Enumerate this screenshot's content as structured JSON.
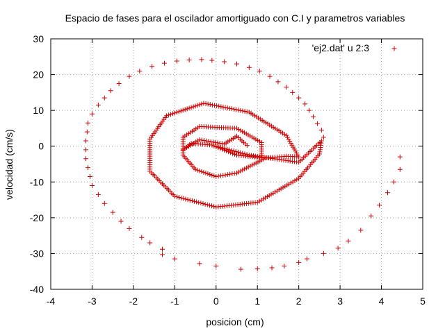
{
  "chart_data": {
    "type": "scatter",
    "title": "Espacio de fases para el oscilador amortiguado con C.I y parametros variables",
    "xlabel": "posicion (cm)",
    "ylabel": "velocidad (cm/s)",
    "xlim": [
      -4,
      5
    ],
    "ylim": [
      -40,
      30
    ],
    "xticks": [
      "-4",
      "-3",
      "-2",
      "-1",
      "0",
      "1",
      "2",
      "3",
      "4",
      "5"
    ],
    "yticks": [
      "-40",
      "-30",
      "-20",
      "-10",
      "0",
      "10",
      "20",
      "30"
    ],
    "grid": true,
    "legend_position": "top-right",
    "marker": "plus",
    "color": "#cc0000",
    "series": [
      {
        "name": "'ej2.dat' u 2:3",
        "anchors": [
          [
            0.0,
            0.0
          ],
          [
            0.8,
            -2.5
          ],
          [
            2.0,
            -4.5
          ],
          [
            2.55,
            1.5
          ],
          [
            2.5,
            -2.2
          ],
          [
            2.0,
            -9.0
          ],
          [
            1.0,
            -15.7
          ],
          [
            0.0,
            -17.0
          ],
          [
            -1.0,
            -14.0
          ],
          [
            -1.6,
            -7.0
          ],
          [
            -1.6,
            2.0
          ],
          [
            -1.2,
            8.5
          ],
          [
            -0.3,
            12.0
          ],
          [
            0.8,
            9.5
          ],
          [
            1.7,
            3.0
          ],
          [
            2.0,
            -3.0
          ],
          [
            1.7,
            -2.8
          ],
          [
            1.2,
            -3.3
          ],
          [
            0.5,
            -7.5
          ],
          [
            0.0,
            -8.5
          ],
          [
            -0.5,
            -6.5
          ],
          [
            -0.8,
            -2.5
          ],
          [
            -0.8,
            2.5
          ],
          [
            -0.4,
            5.5
          ],
          [
            0.5,
            5.0
          ],
          [
            1.1,
            1.0
          ],
          [
            1.1,
            -3.2
          ],
          [
            0.5,
            -2.5
          ],
          [
            -0.1,
            0.3
          ],
          [
            -0.6,
            0.8
          ],
          [
            -0.8,
            -1.0
          ],
          [
            -0.4,
            1.8
          ],
          [
            0.2,
            0.6
          ],
          [
            0.5,
            2.8
          ],
          [
            0.75,
            0.2
          ]
        ],
        "outer_spiral": [
          [
            4.45,
            -3.0
          ],
          [
            4.45,
            -6.5
          ],
          [
            4.3,
            -10.0
          ],
          [
            4.15,
            -13.0
          ],
          [
            3.95,
            -16.5
          ],
          [
            3.75,
            -19.5
          ],
          [
            3.5,
            -23.5
          ],
          [
            3.2,
            -26.5
          ],
          [
            2.95,
            -28.5
          ],
          [
            2.6,
            -30.0
          ],
          [
            2.2,
            -31.5
          ],
          [
            2.0,
            -32.5
          ],
          [
            1.65,
            -33.5
          ],
          [
            1.35,
            -34.0
          ],
          [
            1.0,
            -34.3
          ],
          [
            0.6,
            -34.4
          ],
          [
            0.0,
            -33.5
          ],
          [
            -0.4,
            -32.8
          ],
          [
            -1.0,
            -31.5
          ],
          [
            -1.3,
            -30.3
          ],
          [
            -1.3,
            -28.8
          ],
          [
            -1.6,
            -27.0
          ],
          [
            -1.8,
            -25.5
          ],
          [
            -2.1,
            -23.0
          ],
          [
            -2.3,
            -21.0
          ],
          [
            -2.5,
            -18.5
          ],
          [
            -2.7,
            -16.0
          ],
          [
            -2.85,
            -13.5
          ],
          [
            -3.0,
            -11.0
          ],
          [
            -3.05,
            -8.5
          ],
          [
            -3.1,
            -6.0
          ],
          [
            -3.15,
            -3.5
          ],
          [
            -3.15,
            -1.0
          ],
          [
            -3.15,
            1.5
          ],
          [
            -3.12,
            4.0
          ],
          [
            -3.1,
            6.5
          ],
          [
            -3.0,
            9.0
          ],
          [
            -2.85,
            11.5
          ],
          [
            -2.7,
            13.5
          ],
          [
            -2.55,
            15.5
          ],
          [
            -2.35,
            17.5
          ],
          [
            -2.1,
            19.5
          ],
          [
            -1.85,
            21.0
          ],
          [
            -1.55,
            22.3
          ],
          [
            -1.25,
            23.2
          ],
          [
            -0.95,
            23.8
          ],
          [
            -0.65,
            24.1
          ],
          [
            -0.35,
            24.2
          ],
          [
            -0.1,
            24.0
          ],
          [
            0.2,
            23.6
          ],
          [
            0.5,
            23.0
          ],
          [
            0.8,
            22.0
          ],
          [
            1.05,
            21.0
          ],
          [
            1.3,
            19.5
          ],
          [
            1.5,
            18.0
          ],
          [
            1.7,
            16.5
          ],
          [
            1.85,
            15.0
          ],
          [
            2.0,
            13.5
          ],
          [
            2.15,
            11.8
          ],
          [
            2.25,
            10.0
          ],
          [
            2.35,
            8.2
          ],
          [
            2.45,
            6.3
          ],
          [
            2.55,
            4.5
          ],
          [
            2.6,
            2.5
          ]
        ]
      }
    ]
  }
}
